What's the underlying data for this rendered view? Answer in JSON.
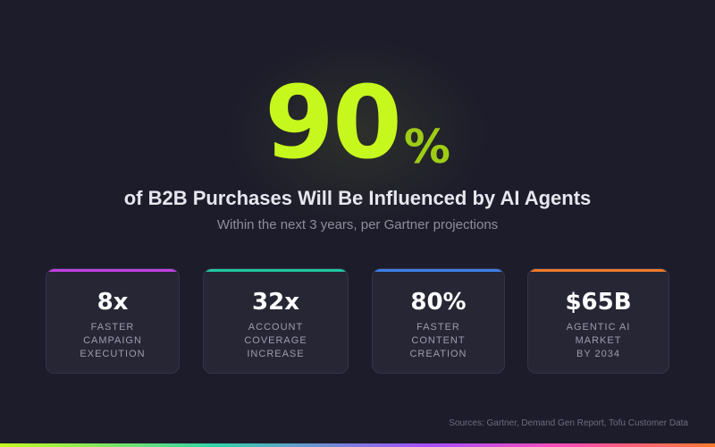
{
  "hero": {
    "number": "90",
    "percent": "%"
  },
  "headline": "of B2B Purchases Will Be Influenced by AI Agents",
  "subline": "Within the next 3 years, per Gartner projections",
  "stats": [
    {
      "value": "8x",
      "label": "FASTER\nCAMPAIGN\nEXECUTION",
      "accent": "#c040e0"
    },
    {
      "value": "32x",
      "label": "ACCOUNT\nCOVERAGE\nINCREASE",
      "accent": "#1fc9a0"
    },
    {
      "value": "80%",
      "label": "FASTER\nCONTENT\nCREATION",
      "accent": "#3d7fe8"
    },
    {
      "value": "$65B",
      "label": "AGENTIC AI\nMARKET\nBY 2034",
      "accent": "#ef7a2a"
    }
  ],
  "sources": "Sources: Gartner, Demand Gen Report, Tofu Customer Data"
}
